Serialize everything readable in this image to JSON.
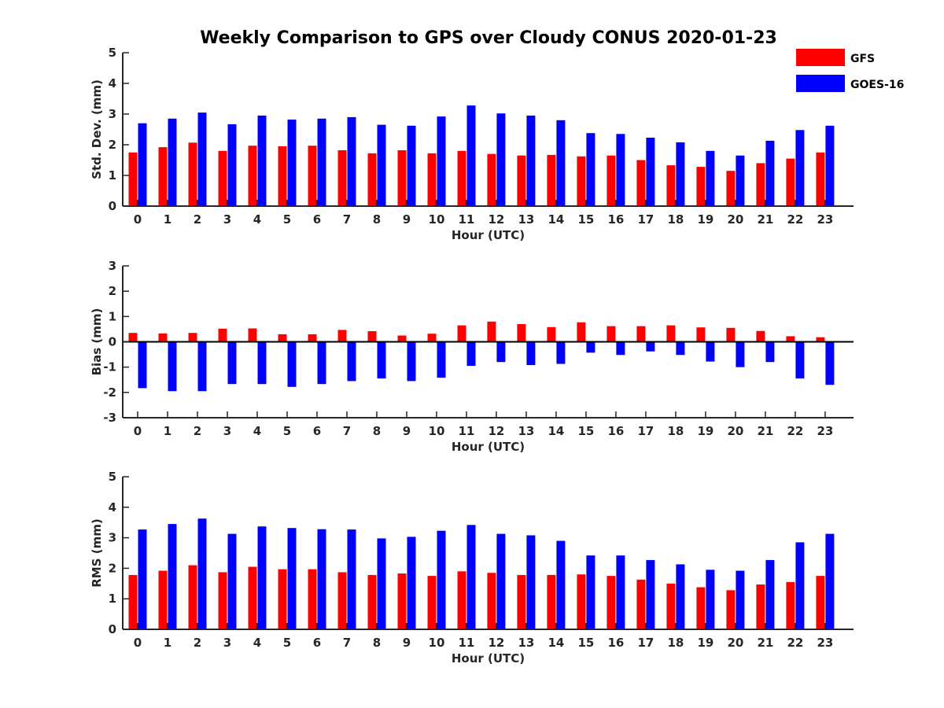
{
  "title": "Weekly Comparison to GPS over Cloudy CONUS 2020-01-23",
  "legend": {
    "placement": "top-right",
    "items": [
      {
        "label": "GFS",
        "color": "#ff0000"
      },
      {
        "label": "GOES-16",
        "color": "#0000ff"
      }
    ]
  },
  "chart_data": [
    {
      "type": "bar",
      "xlabel": "Hour (UTC)",
      "ylabel": "Std. Dev. (mm)",
      "ylim": [
        0,
        5
      ],
      "yticks": [
        0,
        1,
        2,
        3,
        4,
        5
      ],
      "categories": [
        "0",
        "1",
        "2",
        "3",
        "4",
        "5",
        "6",
        "7",
        "8",
        "9",
        "10",
        "11",
        "12",
        "13",
        "14",
        "15",
        "16",
        "17",
        "18",
        "19",
        "20",
        "21",
        "22",
        "23"
      ],
      "series": [
        {
          "name": "GFS",
          "color": "#ff0000",
          "values": [
            1.75,
            1.92,
            2.07,
            1.8,
            1.97,
            1.95,
            1.97,
            1.82,
            1.72,
            1.82,
            1.72,
            1.8,
            1.7,
            1.65,
            1.67,
            1.62,
            1.65,
            1.5,
            1.33,
            1.28,
            1.15,
            1.4,
            1.55,
            1.75
          ]
        },
        {
          "name": "GOES-16",
          "color": "#0000ff",
          "values": [
            2.7,
            2.85,
            3.05,
            2.67,
            2.95,
            2.82,
            2.85,
            2.9,
            2.65,
            2.62,
            2.92,
            3.28,
            3.02,
            2.95,
            2.8,
            2.38,
            2.35,
            2.23,
            2.08,
            1.8,
            1.65,
            2.13,
            2.48,
            2.62
          ]
        }
      ]
    },
    {
      "type": "bar",
      "xlabel": "Hour (UTC)",
      "ylabel": "Bias (mm)",
      "ylim": [
        -3,
        3
      ],
      "yticks": [
        -3,
        -2,
        -1,
        0,
        1,
        2,
        3
      ],
      "categories": [
        "0",
        "1",
        "2",
        "3",
        "4",
        "5",
        "6",
        "7",
        "8",
        "9",
        "10",
        "11",
        "12",
        "13",
        "14",
        "15",
        "16",
        "17",
        "18",
        "19",
        "20",
        "21",
        "22",
        "23"
      ],
      "series": [
        {
          "name": "GFS",
          "color": "#ff0000",
          "values": [
            0.35,
            0.33,
            0.35,
            0.52,
            0.53,
            0.3,
            0.3,
            0.47,
            0.42,
            0.25,
            0.32,
            0.65,
            0.8,
            0.7,
            0.58,
            0.77,
            0.62,
            0.62,
            0.65,
            0.57,
            0.55,
            0.43,
            0.22,
            0.18
          ]
        },
        {
          "name": "GOES-16",
          "color": "#0000ff",
          "values": [
            -1.83,
            -1.95,
            -1.95,
            -1.67,
            -1.67,
            -1.78,
            -1.67,
            -1.55,
            -1.45,
            -1.55,
            -1.42,
            -0.95,
            -0.8,
            -0.92,
            -0.87,
            -0.43,
            -0.52,
            -0.38,
            -0.52,
            -0.78,
            -1.0,
            -0.8,
            -1.45,
            -1.7
          ]
        }
      ]
    },
    {
      "type": "bar",
      "xlabel": "Hour (UTC)",
      "ylabel": "RMS (mm)",
      "ylim": [
        0,
        5
      ],
      "yticks": [
        0,
        1,
        2,
        3,
        4,
        5
      ],
      "categories": [
        "0",
        "1",
        "2",
        "3",
        "4",
        "5",
        "6",
        "7",
        "8",
        "9",
        "10",
        "11",
        "12",
        "13",
        "14",
        "15",
        "16",
        "17",
        "18",
        "19",
        "20",
        "21",
        "22",
        "23"
      ],
      "series": [
        {
          "name": "GFS",
          "color": "#ff0000",
          "values": [
            1.78,
            1.92,
            2.1,
            1.87,
            2.05,
            1.97,
            1.97,
            1.87,
            1.78,
            1.83,
            1.75,
            1.9,
            1.85,
            1.78,
            1.78,
            1.8,
            1.75,
            1.63,
            1.5,
            1.38,
            1.28,
            1.47,
            1.55,
            1.75
          ]
        },
        {
          "name": "GOES-16",
          "color": "#0000ff",
          "values": [
            3.27,
            3.45,
            3.63,
            3.13,
            3.37,
            3.32,
            3.28,
            3.27,
            2.98,
            3.03,
            3.23,
            3.42,
            3.13,
            3.08,
            2.9,
            2.42,
            2.42,
            2.27,
            2.13,
            1.95,
            1.92,
            2.27,
            2.85,
            3.13
          ]
        }
      ]
    }
  ]
}
